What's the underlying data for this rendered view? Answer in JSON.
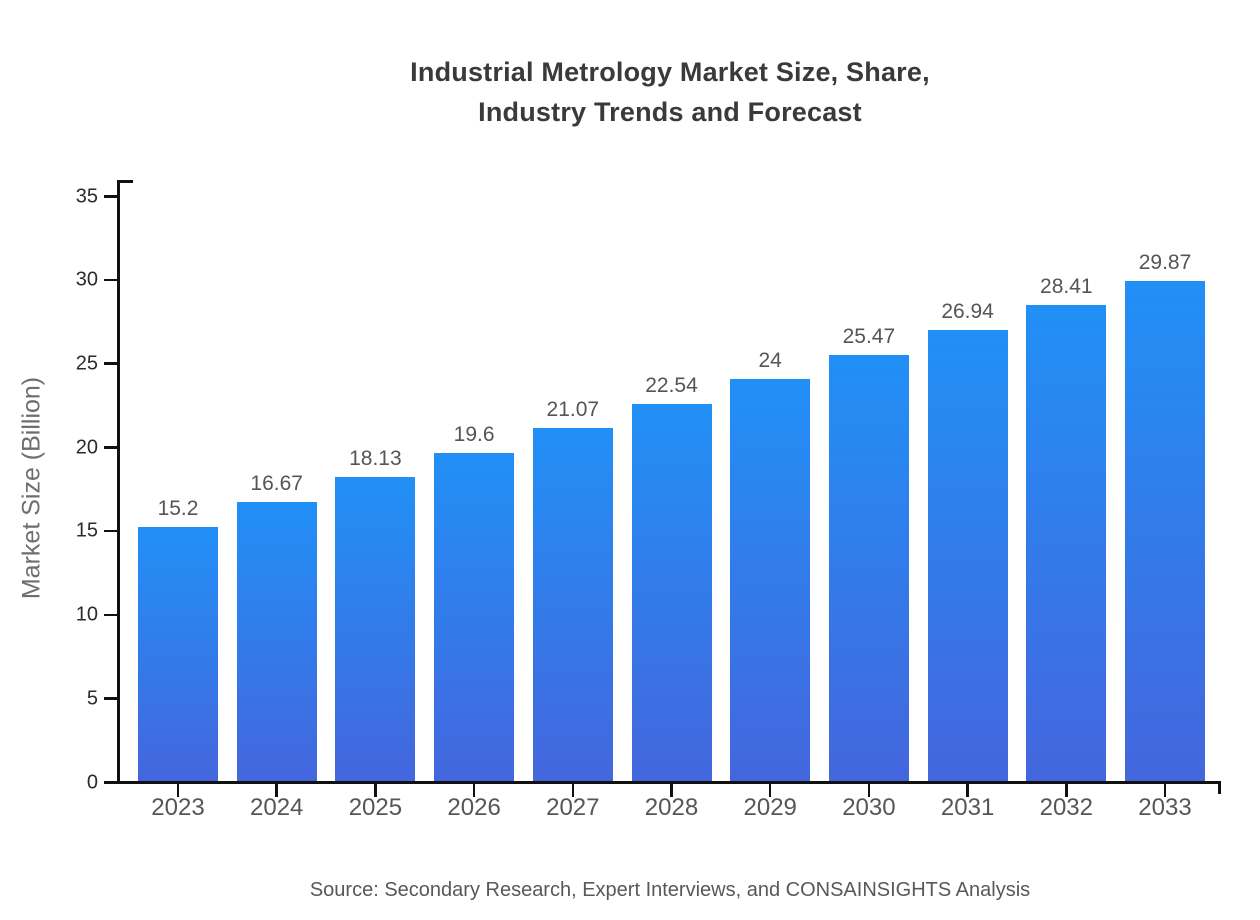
{
  "title": {
    "line1": "Industrial Metrology Market Size, Share,",
    "line2": "Industry Trends and Forecast"
  },
  "source": "Source: Secondary Research, Expert Interviews, and CONSAINSIGHTS Analysis",
  "colors": {
    "background": "#FFFFFF",
    "bar_gradient_top": "#2190F6",
    "bar_gradient_bottom": "#4466DD",
    "axis": "#111111",
    "title_text": "#3A3A3A",
    "x_tick_label": "#565656",
    "y_tick_label": "#2B2B2B",
    "value_label": "#555555",
    "axis_title": "#6E6E6E",
    "source_text": "#585858"
  },
  "chart_data": {
    "type": "bar",
    "title": "Industrial Metrology Market Size, Share, Industry Trends and Forecast",
    "categories": [
      "2023",
      "2024",
      "2025",
      "2026",
      "2027",
      "2028",
      "2029",
      "2030",
      "2031",
      "2032",
      "2033"
    ],
    "values": [
      15.2,
      16.67,
      18.13,
      19.6,
      21.07,
      22.54,
      24,
      25.47,
      26.94,
      28.41,
      29.87
    ],
    "value_labels": [
      "15.2",
      "16.67",
      "18.13",
      "19.6",
      "21.07",
      "22.54",
      "24",
      "25.47",
      "26.94",
      "28.41",
      "29.87"
    ],
    "xlabel": "",
    "ylabel": "Market Size (Billion)",
    "ylim": [
      0,
      35
    ],
    "ytick_step": 5,
    "ytick_labels": [
      "0",
      "5",
      "10",
      "15",
      "20",
      "25",
      "30",
      "35"
    ],
    "grid": false,
    "legend": false,
    "bar_orientation": "vertical"
  }
}
